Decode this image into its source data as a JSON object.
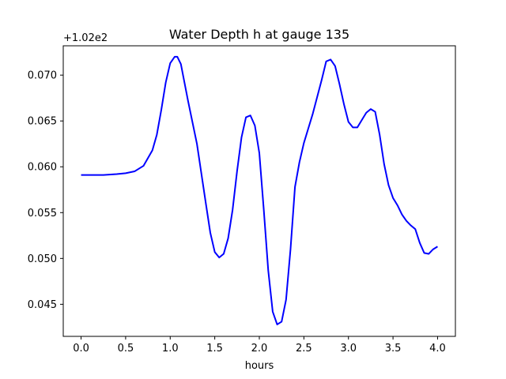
{
  "chart_data": {
    "type": "line",
    "title": "Water Depth h at gauge 135",
    "xlabel": "hours",
    "ylabel": "",
    "y_offset_label": "+1.02e2",
    "xlim": [
      -0.2,
      4.2
    ],
    "ylim": [
      0.0415,
      0.0732
    ],
    "xticks": [
      0.0,
      0.5,
      1.0,
      1.5,
      2.0,
      2.5,
      3.0,
      3.5,
      4.0
    ],
    "xtick_labels": [
      "0.0",
      "0.5",
      "1.0",
      "1.5",
      "2.0",
      "2.5",
      "3.0",
      "3.5",
      "4.0"
    ],
    "yticks": [
      0.045,
      0.05,
      0.055,
      0.06,
      0.065,
      0.07
    ],
    "ytick_labels": [
      "0.045",
      "0.050",
      "0.055",
      "0.060",
      "0.065",
      "0.070"
    ],
    "grid": false,
    "series": [
      {
        "color": "#0000ff",
        "x": [
          0.0,
          0.1,
          0.25,
          0.4,
          0.5,
          0.6,
          0.7,
          0.8,
          0.85,
          0.9,
          0.95,
          1.0,
          1.05,
          1.08,
          1.12,
          1.15,
          1.2,
          1.3,
          1.4,
          1.45,
          1.5,
          1.55,
          1.6,
          1.65,
          1.7,
          1.75,
          1.8,
          1.85,
          1.9,
          1.95,
          2.0,
          2.05,
          2.1,
          2.15,
          2.2,
          2.25,
          2.3,
          2.35,
          2.4,
          2.45,
          2.5,
          2.55,
          2.6,
          2.7,
          2.75,
          2.8,
          2.85,
          2.9,
          2.95,
          3.0,
          3.05,
          3.1,
          3.15,
          3.2,
          3.25,
          3.3,
          3.35,
          3.4,
          3.45,
          3.5,
          3.55,
          3.6,
          3.65,
          3.7,
          3.75,
          3.8,
          3.85,
          3.9,
          3.95,
          4.0
        ],
        "y": [
          0.0591,
          0.0591,
          0.0591,
          0.0592,
          0.0593,
          0.0595,
          0.0601,
          0.0618,
          0.0635,
          0.0662,
          0.0692,
          0.0713,
          0.072,
          0.072,
          0.0712,
          0.0697,
          0.0672,
          0.0625,
          0.056,
          0.0528,
          0.0507,
          0.0501,
          0.0505,
          0.0522,
          0.0553,
          0.0595,
          0.0632,
          0.0654,
          0.0656,
          0.0645,
          0.0615,
          0.0553,
          0.0487,
          0.0442,
          0.0428,
          0.0431,
          0.0455,
          0.051,
          0.0578,
          0.0605,
          0.0626,
          0.0642,
          0.0658,
          0.0695,
          0.0715,
          0.0717,
          0.071,
          0.069,
          0.0668,
          0.0649,
          0.0643,
          0.0643,
          0.0651,
          0.0659,
          0.0663,
          0.066,
          0.0635,
          0.0603,
          0.058,
          0.0566,
          0.0558,
          0.0548,
          0.0541,
          0.0536,
          0.0532,
          0.0517,
          0.0506,
          0.0505,
          0.051,
          0.0513
        ]
      }
    ]
  }
}
